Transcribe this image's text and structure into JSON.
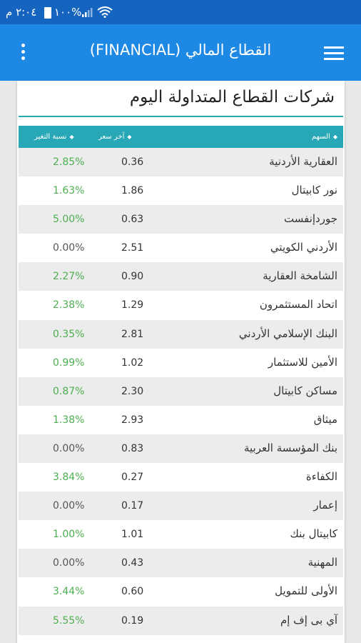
{
  "status_bar": {
    "time": "٢:٠٤ م",
    "battery": "١٠٠%",
    "icons": [
      "wifi-icon",
      "signal-icon",
      "battery-icon"
    ]
  },
  "app_bar": {
    "title": "القطاع المالي (FINANCIAL)",
    "icons": [
      "hamburger-menu-icon",
      "more-vertical-icon"
    ]
  },
  "section": {
    "title": "شركات القطاع المتداولة اليوم"
  },
  "table": {
    "headers": {
      "name": "السهم",
      "price": "آخر سعر",
      "change": "نسبة التغير"
    },
    "header_icon": "sort-icon",
    "rows": [
      {
        "name": "العقارية الأردنية",
        "price": "0.36",
        "change": "2.85%"
      },
      {
        "name": "نور كابيتال",
        "price": "1.86",
        "change": "1.63%"
      },
      {
        "name": "جوردإنفست",
        "price": "0.63",
        "change": "5.00%"
      },
      {
        "name": "الأردني الكويتي",
        "price": "2.51",
        "change": "0.00%"
      },
      {
        "name": "الشامخة العقارية",
        "price": "0.90",
        "change": "2.27%"
      },
      {
        "name": "اتحاد المستثمرون",
        "price": "1.29",
        "change": "2.38%"
      },
      {
        "name": "البنك الإسلامي الأردني",
        "price": "2.81",
        "change": "0.35%"
      },
      {
        "name": "الأمين للاستثمار",
        "price": "1.02",
        "change": "0.99%"
      },
      {
        "name": "مساكن كابيتال",
        "price": "2.30",
        "change": "0.87%"
      },
      {
        "name": "ميثاق",
        "price": "2.93",
        "change": "1.38%"
      },
      {
        "name": "بنك المؤسسة العربية",
        "price": "0.83",
        "change": "0.00%"
      },
      {
        "name": "الكفاءة",
        "price": "0.27",
        "change": "3.84%"
      },
      {
        "name": "إعمار",
        "price": "0.17",
        "change": "0.00%"
      },
      {
        "name": "كابيتال بنك",
        "price": "1.01",
        "change": "1.00%"
      },
      {
        "name": "المهنية",
        "price": "0.43",
        "change": "0.00%"
      },
      {
        "name": "الأولى للتمويل",
        "price": "0.60",
        "change": "3.44%"
      },
      {
        "name": "آي بى إف إم",
        "price": "0.19",
        "change": "5.55%"
      }
    ]
  },
  "colors": {
    "positive": "#4caf50",
    "neutral": "#555555",
    "header": "#28a8b6",
    "appbar": "#1e88e5"
  }
}
